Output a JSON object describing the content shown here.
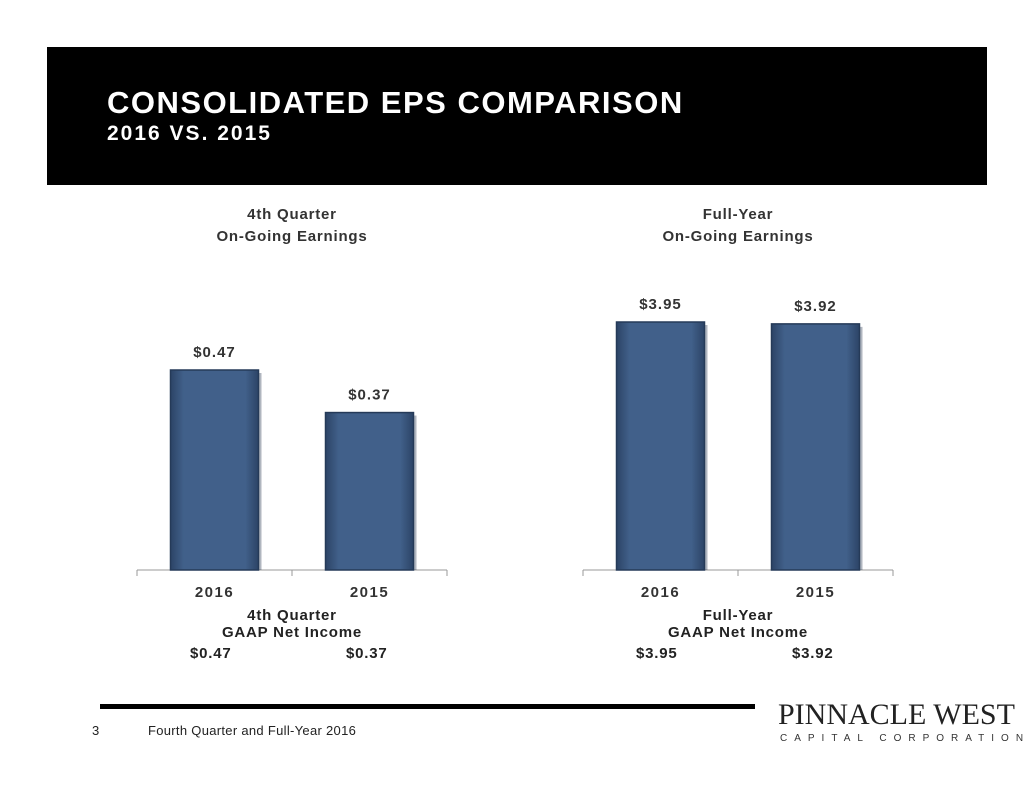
{
  "header": {
    "title": "CONSOLIDATED EPS COMPARISON",
    "subtitle": "2016 VS. 2015"
  },
  "chart_data": [
    {
      "type": "bar",
      "title_line1": "4th Quarter",
      "title_line2": "On-Going Earnings",
      "categories": [
        "2016",
        "2015"
      ],
      "values": [
        0.47,
        0.37
      ],
      "value_labels": [
        "$0.47",
        "$0.37"
      ],
      "color": "#3f5a80",
      "gaap": {
        "label_line1": "4th Quarter",
        "label_line2": "GAAP Net Income",
        "values": [
          "$0.47",
          "$0.37"
        ]
      }
    },
    {
      "type": "bar",
      "title_line1": "Full-Year",
      "title_line2": "On-Going Earnings",
      "categories": [
        "2016",
        "2015"
      ],
      "values": [
        3.95,
        3.92
      ],
      "value_labels": [
        "$3.95",
        "$3.92"
      ],
      "color": "#3f5a80",
      "gaap": {
        "label_line1": "Full-Year",
        "label_line2": "GAAP Net Income",
        "values": [
          "$3.95",
          "$3.92"
        ]
      }
    }
  ],
  "footer": {
    "page_number": "3",
    "text": "Fourth Quarter and Full-Year 2016"
  },
  "logo": {
    "name": "PINNACLE WEST",
    "tagline": "CAPITAL CORPORATION"
  }
}
